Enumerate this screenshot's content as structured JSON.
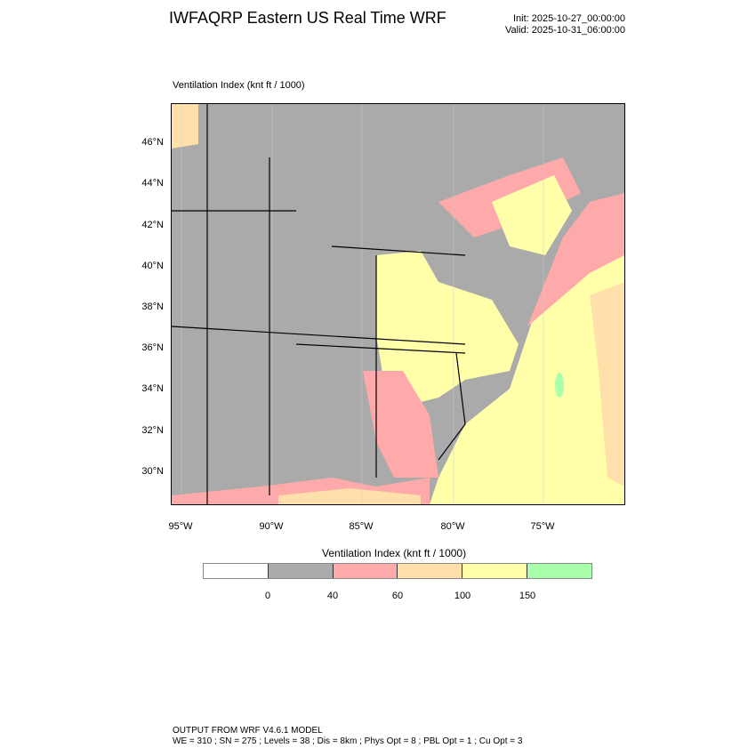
{
  "header": {
    "title": "IWFAQRP Eastern US Real Time WRF",
    "init": "Init: 2025-10-27_00:00:00",
    "valid": "Valid: 2025-10-31_06:00:00"
  },
  "map": {
    "subtitle": "Ventilation Index   (knt ft / 1000)",
    "lat_labels": [
      "46°N",
      "44°N",
      "42°N",
      "40°N",
      "38°N",
      "36°N",
      "34°N",
      "32°N",
      "30°N"
    ],
    "lon_labels": [
      "95°W",
      "90°W",
      "85°W",
      "80°W",
      "75°W"
    ],
    "colors": {
      "below0": "#ffffff",
      "c0_40": "#aaaaaa",
      "c40_60": "#ffaaaa",
      "c60_100": "#ffe0aa",
      "c100_150": "#ffffaa",
      "c150_plus": "#aaffaa"
    }
  },
  "colorbar": {
    "title": "Ventilation Index  (knt ft / 1000)",
    "labels": [
      "0",
      "40",
      "60",
      "100",
      "150"
    ],
    "colors": [
      "#ffffff",
      "#aaaaaa",
      "#ffaaaa",
      "#ffe0aa",
      "#ffffaa",
      "#aaffaa"
    ]
  },
  "footer": {
    "line1": "OUTPUT FROM WRF V4.6.1 MODEL",
    "line2": "WE = 310 ; SN = 275 ; Levels = 38 ; Dis = 8km ; Phys Opt = 8 ; PBL Opt = 1 ; Cu Opt = 3"
  }
}
